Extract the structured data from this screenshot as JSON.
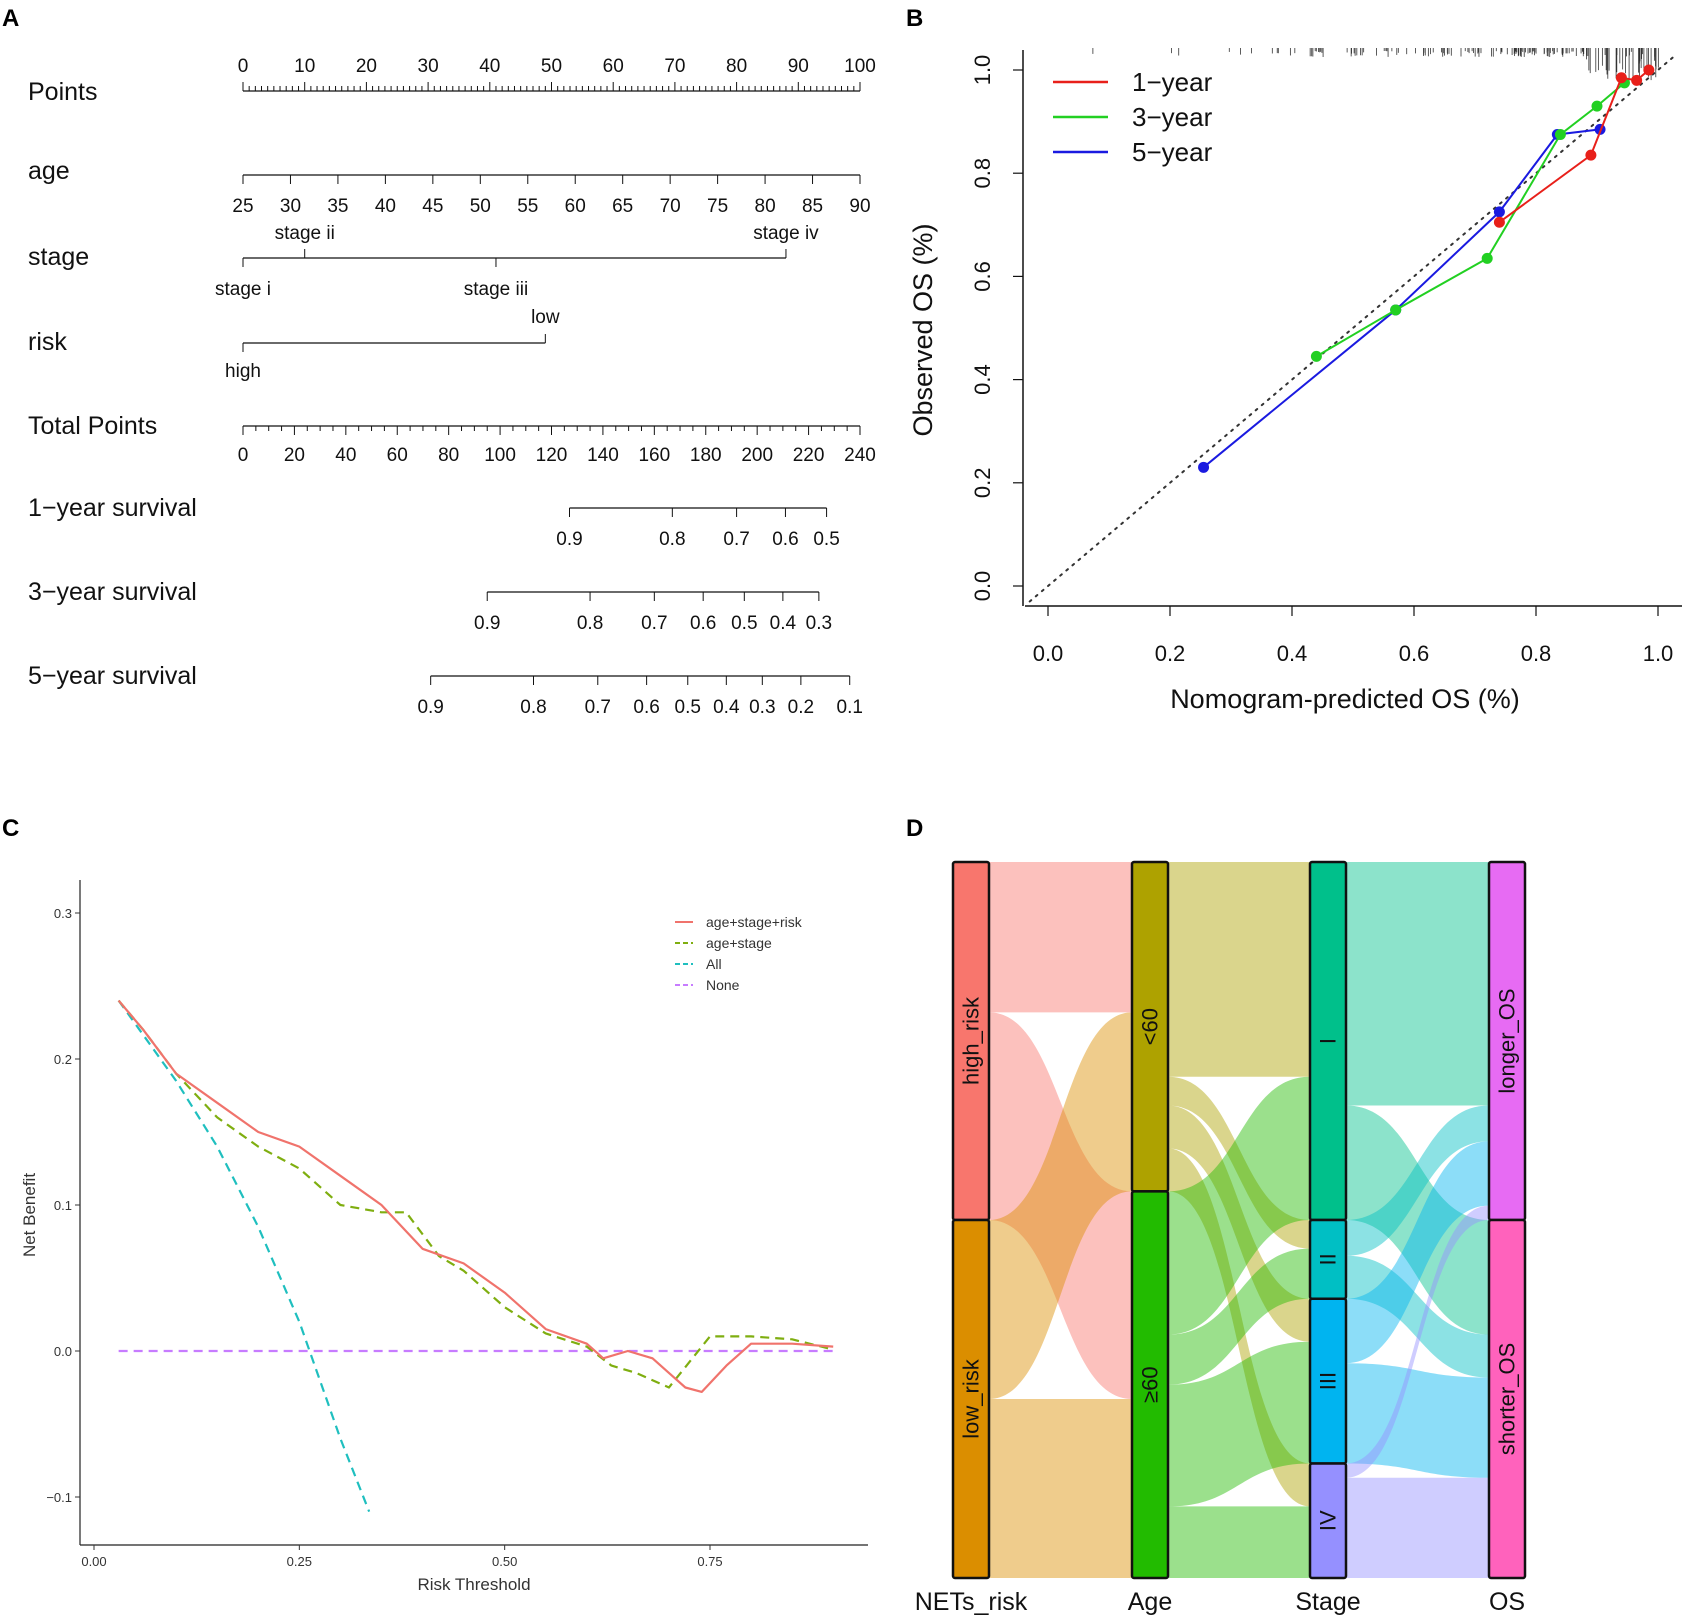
{
  "panels": {
    "a": "A",
    "b": "B",
    "c": "C",
    "d": "D"
  },
  "colors": {
    "red": "#e8201a",
    "green": "#22d022",
    "blue": "#1a1ae0",
    "dca_model": "#f0736c",
    "dca_simple": "#7fae10",
    "dca_all": "#1fbfbf",
    "dca_none": "#c77cff"
  },
  "chart_data": [
    {
      "id": "A",
      "type": "nomogram",
      "title": "",
      "rows": [
        {
          "label": "Points",
          "axis": "points",
          "ticks": [
            "0",
            "10",
            "20",
            "30",
            "40",
            "50",
            "60",
            "70",
            "80",
            "90",
            "100"
          ]
        },
        {
          "label": "age",
          "ticks": [
            "25",
            "30",
            "35",
            "40",
            "45",
            "50",
            "55",
            "60",
            "65",
            "70",
            "75",
            "80",
            "85",
            "90"
          ]
        },
        {
          "label": "stage",
          "levels": [
            {
              "name": "stage i",
              "points": 0
            },
            {
              "name": "stage ii",
              "points": 10
            },
            {
              "name": "stage iii",
              "points": 41
            },
            {
              "name": "stage iv",
              "points": 88
            }
          ]
        },
        {
          "label": "risk",
          "levels": [
            {
              "name": "high",
              "points": 0
            },
            {
              "name": "low",
              "points": 49
            }
          ]
        },
        {
          "label": "Total Points",
          "ticks": [
            "0",
            "20",
            "40",
            "60",
            "80",
            "100",
            "120",
            "140",
            "160",
            "180",
            "200",
            "220",
            "240"
          ]
        },
        {
          "label": "1−year survival",
          "ticks": [
            {
              "label": "0.9",
              "total": 127
            },
            {
              "label": "0.8",
              "total": 167
            },
            {
              "label": "0.7",
              "total": 192
            },
            {
              "label": "0.6",
              "total": 211
            },
            {
              "label": "0.5",
              "total": 227
            }
          ]
        },
        {
          "label": "3−year survival",
          "ticks": [
            {
              "label": "0.9",
              "total": 95
            },
            {
              "label": "0.8",
              "total": 135
            },
            {
              "label": "0.7",
              "total": 160
            },
            {
              "label": "0.6",
              "total": 179
            },
            {
              "label": "0.5",
              "total": 195
            },
            {
              "label": "0.4",
              "total": 210
            },
            {
              "label": "0.3",
              "total": 224
            }
          ]
        },
        {
          "label": "5−year survival",
          "ticks": [
            {
              "label": "0.9",
              "total": 73
            },
            {
              "label": "0.8",
              "total": 113
            },
            {
              "label": "0.7",
              "total": 138
            },
            {
              "label": "0.6",
              "total": 157
            },
            {
              "label": "0.5",
              "total": 173
            },
            {
              "label": "0.4",
              "total": 188
            },
            {
              "label": "0.3",
              "total": 202
            },
            {
              "label": "0.2",
              "total": 217
            },
            {
              "label": "0.1",
              "total": 236
            }
          ]
        }
      ]
    },
    {
      "id": "B",
      "type": "line",
      "title": "",
      "xlabel": "Nomogram-predicted OS (%)",
      "ylabel": "Observed OS (%)",
      "xlim": [
        0,
        1
      ],
      "ylim": [
        0,
        1
      ],
      "xticks": [
        "0.0",
        "0.2",
        "0.4",
        "0.6",
        "0.8",
        "1.0"
      ],
      "yticks": [
        "0.0",
        "0.2",
        "0.4",
        "0.6",
        "0.8",
        "1.0"
      ],
      "reference_line": "diagonal dotted",
      "legend_position": "top-left",
      "series": [
        {
          "name": "1−year",
          "color": "#e8201a",
          "x": [
            0.74,
            0.89,
            0.94,
            0.965,
            0.985
          ],
          "y": [
            0.705,
            0.835,
            0.985,
            0.98,
            1.0
          ]
        },
        {
          "name": "3−year",
          "color": "#22d022",
          "x": [
            0.44,
            0.57,
            0.72,
            0.84,
            0.9,
            0.945
          ],
          "y": [
            0.445,
            0.535,
            0.635,
            0.875,
            0.93,
            0.975
          ]
        },
        {
          "name": "5−year",
          "color": "#1a1ae0",
          "x": [
            0.255,
            0.57,
            0.74,
            0.835,
            0.905
          ],
          "y": [
            0.23,
            0.535,
            0.725,
            0.875,
            0.885
          ]
        }
      ]
    },
    {
      "id": "C",
      "type": "line",
      "title": "",
      "xlabel": "Risk Threshold",
      "ylabel": "Net Benefit",
      "xlim": [
        0,
        0.9
      ],
      "ylim": [
        -0.12,
        0.3
      ],
      "xticks": [
        "0.00",
        "0.25",
        "0.50",
        "0.75"
      ],
      "yticks": [
        "−0.1",
        "0.0",
        "0.1",
        "0.2",
        "0.3"
      ],
      "legend_position": "top-right",
      "series": [
        {
          "name": "age+stage+risk",
          "color": "#f0736c",
          "style": "solid",
          "x": [
            0.03,
            0.06,
            0.1,
            0.15,
            0.2,
            0.25,
            0.3,
            0.35,
            0.4,
            0.45,
            0.5,
            0.55,
            0.6,
            0.62,
            0.65,
            0.68,
            0.7,
            0.72,
            0.74,
            0.77,
            0.8,
            0.85,
            0.9
          ],
          "y": [
            0.24,
            0.22,
            0.19,
            0.17,
            0.15,
            0.14,
            0.12,
            0.1,
            0.07,
            0.06,
            0.04,
            0.015,
            0.005,
            -0.005,
            0.0,
            -0.005,
            -0.015,
            -0.025,
            -0.028,
            -0.01,
            0.005,
            0.005,
            0.003
          ]
        },
        {
          "name": "age+stage",
          "color": "#7fae10",
          "style": "dashed",
          "x": [
            0.03,
            0.06,
            0.1,
            0.15,
            0.2,
            0.25,
            0.3,
            0.35,
            0.38,
            0.42,
            0.45,
            0.5,
            0.55,
            0.6,
            0.63,
            0.66,
            0.7,
            0.75,
            0.8,
            0.85,
            0.9
          ],
          "y": [
            0.24,
            0.22,
            0.19,
            0.16,
            0.14,
            0.125,
            0.1,
            0.095,
            0.095,
            0.065,
            0.055,
            0.03,
            0.012,
            0.003,
            -0.01,
            -0.015,
            -0.025,
            0.01,
            0.01,
            0.008,
            0.001
          ]
        },
        {
          "name": "All",
          "color": "#1fbfbf",
          "style": "dashed",
          "x": [
            0.03,
            0.1,
            0.15,
            0.2,
            0.25,
            0.3,
            0.335
          ],
          "y": [
            0.24,
            0.185,
            0.14,
            0.085,
            0.02,
            -0.06,
            -0.11
          ]
        },
        {
          "name": "None",
          "color": "#c77cff",
          "style": "dashed",
          "x": [
            0.03,
            0.9
          ],
          "y": [
            0,
            0
          ]
        }
      ]
    },
    {
      "id": "D",
      "type": "sankey",
      "title": "",
      "axes": [
        "NETs_risk",
        "Age",
        "Stage",
        "OS"
      ],
      "nodes": [
        {
          "axis": "NETs_risk",
          "name": "high_risk",
          "value": 50,
          "color": "#f8766d"
        },
        {
          "axis": "NETs_risk",
          "name": "low_risk",
          "value": 50,
          "color": "#db8e00"
        },
        {
          "axis": "Age",
          "name": "<60",
          "value": 46,
          "color": "#aea200"
        },
        {
          "axis": "Age",
          "name": "≥60",
          "value": 54,
          "color": "#22bb00"
        },
        {
          "axis": "Stage",
          "name": "I",
          "value": 50,
          "color": "#00c08b"
        },
        {
          "axis": "Stage",
          "name": "II",
          "value": 11,
          "color": "#00bfc4"
        },
        {
          "axis": "Stage",
          "name": "III",
          "value": 23,
          "color": "#00b4f0"
        },
        {
          "axis": "Stage",
          "name": "IV",
          "value": 16,
          "color": "#9590ff"
        },
        {
          "axis": "OS",
          "name": "longer_OS",
          "value": 50,
          "color": "#e76bf3"
        },
        {
          "axis": "OS",
          "name": "shorter_OS",
          "value": 50,
          "color": "#ff62bc"
        }
      ],
      "flows": [
        {
          "from": "high_risk",
          "to": "<60",
          "value": 21
        },
        {
          "from": "high_risk",
          "to": "≥60",
          "value": 29
        },
        {
          "from": "low_risk",
          "to": "<60",
          "value": 25
        },
        {
          "from": "low_risk",
          "to": "≥60",
          "value": 25
        },
        {
          "from": "<60",
          "to": "I",
          "value": 30
        },
        {
          "from": "<60",
          "to": "II",
          "value": 4
        },
        {
          "from": "<60",
          "to": "III",
          "value": 6
        },
        {
          "from": "<60",
          "to": "IV",
          "value": 6
        },
        {
          "from": "≥60",
          "to": "I",
          "value": 20
        },
        {
          "from": "≥60",
          "to": "II",
          "value": 7
        },
        {
          "from": "≥60",
          "to": "III",
          "value": 17
        },
        {
          "from": "≥60",
          "to": "IV",
          "value": 10
        },
        {
          "from": "I",
          "to": "longer_OS",
          "value": 34
        },
        {
          "from": "I",
          "to": "shorter_OS",
          "value": 16
        },
        {
          "from": "II",
          "to": "longer_OS",
          "value": 5
        },
        {
          "from": "II",
          "to": "shorter_OS",
          "value": 6
        },
        {
          "from": "III",
          "to": "longer_OS",
          "value": 9
        },
        {
          "from": "III",
          "to": "shorter_OS",
          "value": 14
        },
        {
          "from": "IV",
          "to": "longer_OS",
          "value": 2
        },
        {
          "from": "IV",
          "to": "shorter_OS",
          "value": 14
        }
      ]
    }
  ]
}
